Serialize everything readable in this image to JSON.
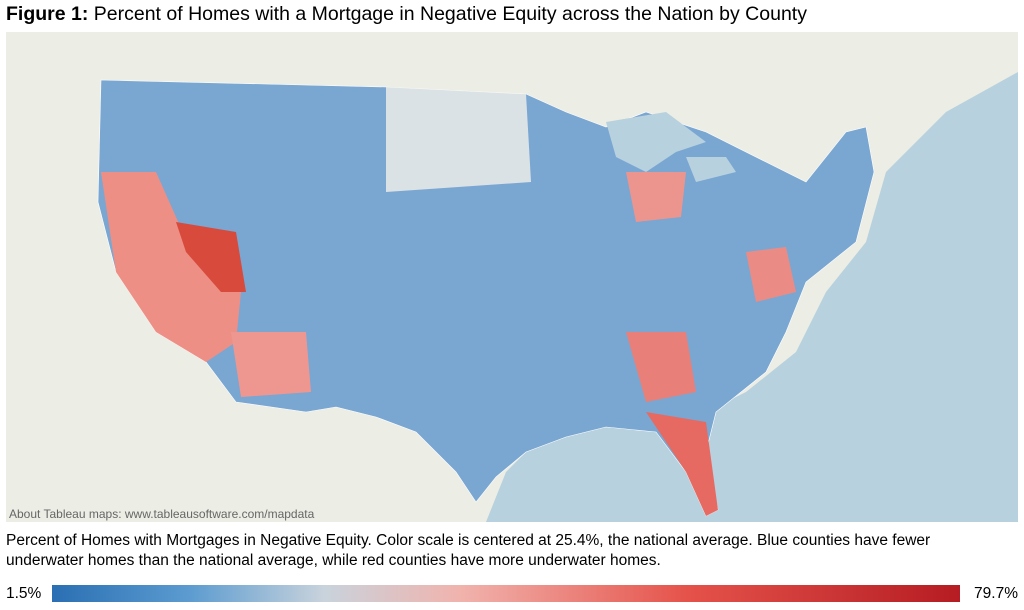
{
  "header": {
    "label": "Figure 1:",
    "title": "Percent of Homes with a Mortgage in Negative Equity across the Nation by County"
  },
  "map": {
    "attribution": "About Tableau maps: www.tableausoftware.com/mapdata"
  },
  "caption": "Percent of Homes with Mortgages in Negative Equity. Color scale is centered at 25.4%, the national average. Blue counties have fewer underwater homes than the national average, while red counties have more underwater homes.",
  "legend": {
    "min_label": "1.5%",
    "max_label": "79.7%"
  }
}
